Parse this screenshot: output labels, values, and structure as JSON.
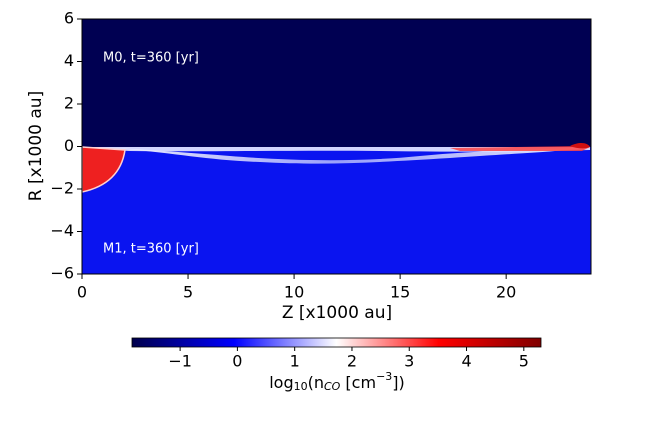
{
  "chart_data": {
    "type": "heatmap",
    "xlabel": "Z [x1000 au]",
    "ylabel": "R [x1000 au]",
    "annotations": [
      "M0, t=360 [yr]",
      "M1, t=360 [yr]"
    ],
    "xlim": [
      0,
      24
    ],
    "xticks": [
      0,
      5,
      10,
      15,
      20
    ],
    "ylim": [
      -6,
      6
    ],
    "yticks": [
      {
        "value": -6,
        "label": "−6"
      },
      {
        "value": -4,
        "label": "−4"
      },
      {
        "value": -2,
        "label": "−2"
      },
      0,
      2,
      4,
      6
    ],
    "colorbar": {
      "label": [
        "log",
        "10",
        "(n",
        "CO",
        " [cm",
        "−3",
        "])"
      ],
      "clim": [
        -1.84,
        5.3
      ],
      "ticks": [
        {
          "value": -1,
          "label": "−1"
        },
        0,
        1,
        2,
        3,
        4,
        5
      ],
      "colors": [
        "#00004c",
        "#0000ff",
        "#ffffff",
        "#ff0000",
        "#800000"
      ]
    }
  }
}
